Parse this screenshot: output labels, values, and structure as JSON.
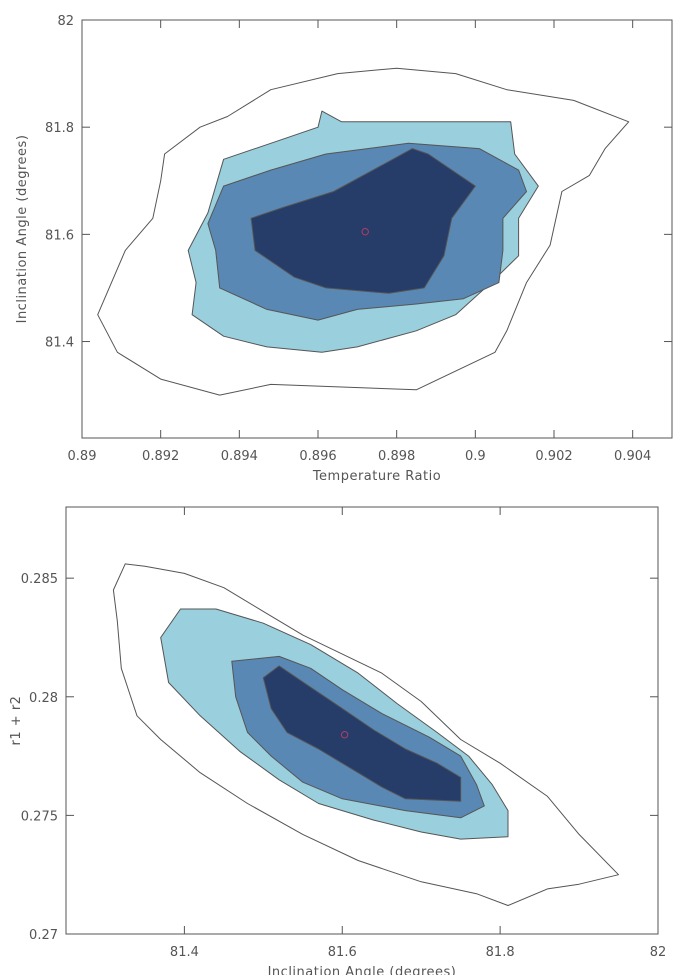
{
  "chart_data": [
    {
      "type": "contour",
      "xlabel": "Temperature Ratio",
      "ylabel": "Inclination Angle (degrees)",
      "xlim": [
        0.89,
        0.905
      ],
      "ylim": [
        81.22,
        82.0
      ],
      "x_ticks": [
        0.89,
        0.892,
        0.894,
        0.896,
        0.898,
        0.9,
        0.902,
        0.904
      ],
      "x_tick_labels": [
        "0.89",
        "0.892",
        "0.894",
        "0.896",
        "0.898",
        "0.9",
        "0.902",
        "0.904"
      ],
      "y_ticks": [
        81.4,
        81.6,
        81.8,
        82.0
      ],
      "y_tick_labels": [
        "81.4",
        "81.6",
        "81.8",
        "82"
      ],
      "best_fit": [
        0.8972,
        81.605
      ],
      "levels": [
        {
          "fill": "#ffffff",
          "polygon": [
            [
              0.8909,
              81.38
            ],
            [
              0.8904,
              81.45
            ],
            [
              0.8911,
              81.57
            ],
            [
              0.8918,
              81.63
            ],
            [
              0.892,
              81.7
            ],
            [
              0.8921,
              81.75
            ],
            [
              0.893,
              81.8
            ],
            [
              0.8937,
              81.82
            ],
            [
              0.8948,
              81.87
            ],
            [
              0.8965,
              81.9
            ],
            [
              0.898,
              81.91
            ],
            [
              0.8995,
              81.9
            ],
            [
              0.9008,
              81.87
            ],
            [
              0.9025,
              81.85
            ],
            [
              0.9039,
              81.81
            ],
            [
              0.9033,
              81.76
            ],
            [
              0.9029,
              81.71
            ],
            [
              0.9022,
              81.68
            ],
            [
              0.9019,
              81.58
            ],
            [
              0.9013,
              81.51
            ],
            [
              0.9008,
              81.42
            ],
            [
              0.9005,
              81.38
            ],
            [
              0.8985,
              81.31
            ],
            [
              0.8948,
              81.32
            ],
            [
              0.8935,
              81.3
            ],
            [
              0.892,
              81.33
            ]
          ]
        },
        {
          "fill": "#9acfdd",
          "polygon": [
            [
              0.8928,
              81.45
            ],
            [
              0.8929,
              81.51
            ],
            [
              0.8927,
              81.57
            ],
            [
              0.8932,
              81.64
            ],
            [
              0.8936,
              81.74
            ],
            [
              0.8948,
              81.77
            ],
            [
              0.896,
              81.8
            ],
            [
              0.8961,
              81.83
            ],
            [
              0.8966,
              81.81
            ],
            [
              0.9009,
              81.81
            ],
            [
              0.901,
              81.75
            ],
            [
              0.9016,
              81.69
            ],
            [
              0.9011,
              81.63
            ],
            [
              0.9011,
              81.56
            ],
            [
              0.9004,
              81.51
            ],
            [
              0.8995,
              81.45
            ],
            [
              0.8985,
              81.42
            ],
            [
              0.897,
              81.39
            ],
            [
              0.8961,
              81.38
            ],
            [
              0.8947,
              81.39
            ],
            [
              0.8936,
              81.41
            ]
          ]
        },
        {
          "fill": "#5a88b4",
          "polygon": [
            [
              0.8935,
              81.5
            ],
            [
              0.8934,
              81.57
            ],
            [
              0.8932,
              81.62
            ],
            [
              0.8936,
              81.69
            ],
            [
              0.8948,
              81.72
            ],
            [
              0.8962,
              81.75
            ],
            [
              0.8983,
              81.77
            ],
            [
              0.9001,
              81.76
            ],
            [
              0.9011,
              81.72
            ],
            [
              0.9013,
              81.68
            ],
            [
              0.9007,
              81.63
            ],
            [
              0.9007,
              81.57
            ],
            [
              0.9006,
              81.51
            ],
            [
              0.8997,
              81.48
            ],
            [
              0.8985,
              81.47
            ],
            [
              0.897,
              81.46
            ],
            [
              0.896,
              81.44
            ],
            [
              0.8947,
              81.46
            ]
          ]
        },
        {
          "fill": "#263c69",
          "polygon": [
            [
              0.8944,
              81.57
            ],
            [
              0.8943,
              81.63
            ],
            [
              0.8951,
              81.65
            ],
            [
              0.8964,
              81.68
            ],
            [
              0.8974,
              81.72
            ],
            [
              0.8984,
              81.76
            ],
            [
              0.8988,
              81.75
            ],
            [
              0.9,
              81.69
            ],
            [
              0.8994,
              81.63
            ],
            [
              0.8992,
              81.56
            ],
            [
              0.8987,
              81.5
            ],
            [
              0.8978,
              81.49
            ],
            [
              0.8962,
              81.5
            ],
            [
              0.8954,
              81.52
            ]
          ]
        }
      ]
    },
    {
      "type": "contour",
      "xlabel": "Inclination Angle (degrees)",
      "ylabel": "r1 + r2",
      "xlim": [
        81.25,
        82.0
      ],
      "ylim": [
        0.27,
        0.288
      ],
      "x_ticks": [
        81.4,
        81.6,
        81.8,
        82.0
      ],
      "x_tick_labels": [
        "81.4",
        "81.6",
        "81.8",
        "82"
      ],
      "y_ticks": [
        0.27,
        0.275,
        0.28,
        0.285
      ],
      "y_tick_labels": [
        "0.27",
        "0.275",
        "0.28",
        "0.285"
      ],
      "best_fit": [
        81.603,
        0.2784
      ],
      "levels": [
        {
          "fill": "#ffffff",
          "polygon": [
            [
              81.31,
              0.2845
            ],
            [
              81.315,
              0.2832
            ],
            [
              81.32,
              0.2812
            ],
            [
              81.34,
              0.2792
            ],
            [
              81.37,
              0.2782
            ],
            [
              81.42,
              0.2768
            ],
            [
              81.48,
              0.2755
            ],
            [
              81.55,
              0.2742
            ],
            [
              81.62,
              0.2731
            ],
            [
              81.7,
              0.2722
            ],
            [
              81.77,
              0.2717
            ],
            [
              81.81,
              0.2712
            ],
            [
              81.86,
              0.2719
            ],
            [
              81.9,
              0.2721
            ],
            [
              81.95,
              0.2725
            ],
            [
              81.9,
              0.2742
            ],
            [
              81.86,
              0.2758
            ],
            [
              81.8,
              0.2772
            ],
            [
              81.75,
              0.2782
            ],
            [
              81.7,
              0.2798
            ],
            [
              81.65,
              0.281
            ],
            [
              81.6,
              0.2818
            ],
            [
              81.55,
              0.2826
            ],
            [
              81.5,
              0.2836
            ],
            [
              81.45,
              0.2846
            ],
            [
              81.4,
              0.2852
            ],
            [
              81.35,
              0.2855
            ],
            [
              81.325,
              0.2856
            ]
          ]
        },
        {
          "fill": "#9acfdd",
          "polygon": [
            [
              81.37,
              0.2825
            ],
            [
              81.38,
              0.2806
            ],
            [
              81.42,
              0.2792
            ],
            [
              81.47,
              0.2777
            ],
            [
              81.52,
              0.2765
            ],
            [
              81.57,
              0.2755
            ],
            [
              81.64,
              0.2748
            ],
            [
              81.7,
              0.2743
            ],
            [
              81.75,
              0.274
            ],
            [
              81.81,
              0.2741
            ],
            [
              81.81,
              0.2752
            ],
            [
              81.79,
              0.2763
            ],
            [
              81.76,
              0.2775
            ],
            [
              81.72,
              0.2785
            ],
            [
              81.67,
              0.2797
            ],
            [
              81.62,
              0.281
            ],
            [
              81.56,
              0.2822
            ],
            [
              81.5,
              0.2831
            ],
            [
              81.44,
              0.2837
            ],
            [
              81.395,
              0.2837
            ]
          ]
        },
        {
          "fill": "#5a88b4",
          "polygon": [
            [
              81.46,
              0.2815
            ],
            [
              81.465,
              0.28
            ],
            [
              81.48,
              0.2785
            ],
            [
              81.51,
              0.2775
            ],
            [
              81.55,
              0.2764
            ],
            [
              81.6,
              0.2757
            ],
            [
              81.68,
              0.2752
            ],
            [
              81.75,
              0.2749
            ],
            [
              81.78,
              0.2754
            ],
            [
              81.77,
              0.2763
            ],
            [
              81.75,
              0.2775
            ],
            [
              81.71,
              0.2783
            ],
            [
              81.65,
              0.2793
            ],
            [
              81.6,
              0.2803
            ],
            [
              81.56,
              0.2812
            ],
            [
              81.52,
              0.2817
            ]
          ]
        },
        {
          "fill": "#263c69",
          "polygon": [
            [
              81.5,
              0.2808
            ],
            [
              81.51,
              0.2795
            ],
            [
              81.53,
              0.2785
            ],
            [
              81.57,
              0.2778
            ],
            [
              81.62,
              0.2768
            ],
            [
              81.65,
              0.2762
            ],
            [
              81.68,
              0.2757
            ],
            [
              81.75,
              0.2756
            ],
            [
              81.75,
              0.2766
            ],
            [
              81.72,
              0.2772
            ],
            [
              81.68,
              0.2778
            ],
            [
              81.64,
              0.2786
            ],
            [
              81.6,
              0.2795
            ],
            [
              81.56,
              0.2804
            ],
            [
              81.52,
              0.2813
            ]
          ]
        }
      ]
    }
  ]
}
